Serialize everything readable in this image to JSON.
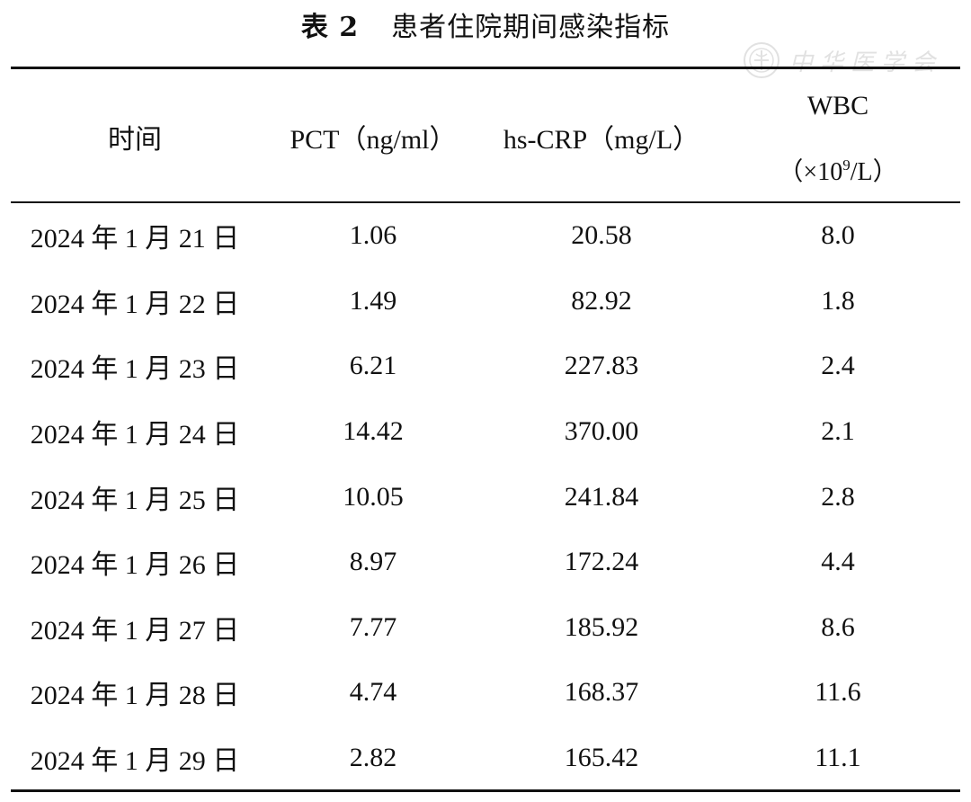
{
  "table": {
    "title_number": "表 2",
    "title_text": "患者住院期间感染指标",
    "headers": {
      "time": "时间",
      "pct": "PCT（ng/ml）",
      "crp": "hs-CRP（mg/L）",
      "wbc": "WBC",
      "wbc_unit_prefix": "（×10",
      "wbc_unit_exp": "9",
      "wbc_unit_suffix": "/L）"
    },
    "rows": [
      {
        "date": "2024 年 1 月 21 日",
        "pct": "1.06",
        "crp": "20.58",
        "wbc": "8.0"
      },
      {
        "date": "2024 年 1 月 22 日",
        "pct": "1.49",
        "crp": "82.92",
        "wbc": "1.8"
      },
      {
        "date": "2024 年 1 月 23 日",
        "pct": "6.21",
        "crp": "227.83",
        "wbc": "2.4"
      },
      {
        "date": "2024 年 1 月 24 日",
        "pct": "14.42",
        "crp": "370.00",
        "wbc": "2.1"
      },
      {
        "date": "2024 年 1 月 25 日",
        "pct": "10.05",
        "crp": "241.84",
        "wbc": "2.8"
      },
      {
        "date": "2024 年 1 月 26 日",
        "pct": "8.97",
        "crp": "172.24",
        "wbc": "4.4"
      },
      {
        "date": "2024 年 1 月 27 日",
        "pct": "7.77",
        "crp": "185.92",
        "wbc": "8.6"
      },
      {
        "date": "2024 年 1 月 28 日",
        "pct": "4.74",
        "crp": "168.37",
        "wbc": "11.6"
      },
      {
        "date": "2024 年 1 月 29 日",
        "pct": "2.82",
        "crp": "165.42",
        "wbc": "11.1"
      }
    ]
  },
  "watermark": {
    "text": "中华医学会",
    "icon": "society-seal-icon"
  }
}
